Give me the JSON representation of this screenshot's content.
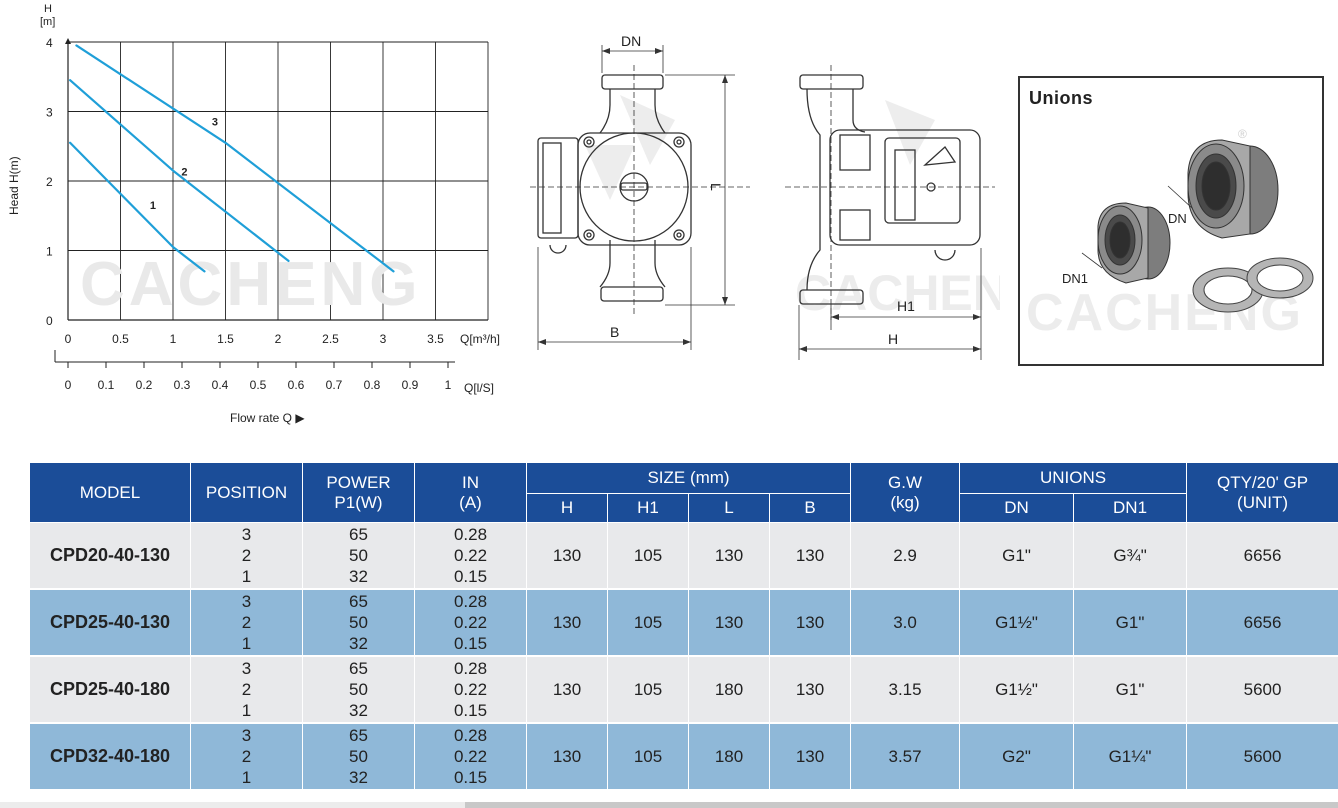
{
  "chart_data": {
    "type": "line",
    "ylabel_top": "H",
    "yunit": "[m]",
    "ylabel": "Head H(m)",
    "xunit_q": "Q[m³/h]",
    "xunit_l": "Q[l/S]",
    "xlabel": "Flow rate Q ▶",
    "yticks": [
      "0",
      "1",
      "2",
      "3",
      "4"
    ],
    "xticks_m3h": [
      "0",
      "0.5",
      "1",
      "1.5",
      "2",
      "2.5",
      "3",
      "3.5"
    ],
    "xticks_ls": [
      "0",
      "0.1",
      "0.2",
      "0.3",
      "0.4",
      "0.5",
      "0.6",
      "0.7",
      "0.8",
      "0.9",
      "1"
    ],
    "xlim": [
      0,
      4
    ],
    "ylim": [
      0,
      4
    ],
    "series": [
      {
        "name": "1",
        "x": [
          0.02,
          1.0,
          1.3
        ],
        "y": [
          2.55,
          1.05,
          0.7
        ]
      },
      {
        "name": "2",
        "x": [
          0.02,
          1.0,
          2.1
        ],
        "y": [
          3.45,
          2.15,
          0.85
        ]
      },
      {
        "name": "3",
        "x": [
          0.08,
          1.5,
          3.1
        ],
        "y": [
          3.95,
          2.55,
          0.7
        ]
      }
    ],
    "watermark": "CACHENG"
  },
  "diagram": {
    "front_labels": {
      "dn": "DN",
      "l": "L",
      "b": "B"
    },
    "side_labels": {
      "h1": "H1",
      "h": "H"
    },
    "watermark": "CACHENG",
    "registered": "®"
  },
  "unions": {
    "title": "Unions",
    "dn": "DN",
    "dn1": "DN1",
    "watermark": "CACHENG",
    "registered": "®"
  },
  "table": {
    "headers": {
      "model": "MODEL",
      "position": "POSITION",
      "power_line1": "POWER",
      "power_line2": "P1(W)",
      "in_line1": "IN",
      "in_line2": "(A)",
      "size": "SIZE (mm)",
      "size_h": "H",
      "size_h1": "H1",
      "size_l": "L",
      "size_b": "B",
      "gw_line1": "G.W",
      "gw_line2": "(kg)",
      "unions": "UNIONS",
      "unions_dn": "DN",
      "unions_dn1": "DN1",
      "qty_line1": "QTY/20' GP",
      "qty_line2": "(UNIT)"
    },
    "rows": [
      {
        "model": "CPD20-40-130",
        "positions": [
          "3",
          "2",
          "1"
        ],
        "power": [
          "65",
          "50",
          "32"
        ],
        "current": [
          "0.28",
          "0.22",
          "0.15"
        ],
        "h": "130",
        "h1": "105",
        "l": "130",
        "b": "130",
        "gw": "2.9",
        "dn": "G1\"",
        "dn1": "G¾\"",
        "qty": "6656"
      },
      {
        "model": "CPD25-40-130",
        "positions": [
          "3",
          "2",
          "1"
        ],
        "power": [
          "65",
          "50",
          "32"
        ],
        "current": [
          "0.28",
          "0.22",
          "0.15"
        ],
        "h": "130",
        "h1": "105",
        "l": "130",
        "b": "130",
        "gw": "3.0",
        "dn": "G1½\"",
        "dn1": "G1\"",
        "qty": "6656"
      },
      {
        "model": "CPD25-40-180",
        "positions": [
          "3",
          "2",
          "1"
        ],
        "power": [
          "65",
          "50",
          "32"
        ],
        "current": [
          "0.28",
          "0.22",
          "0.15"
        ],
        "h": "130",
        "h1": "105",
        "l": "180",
        "b": "130",
        "gw": "3.15",
        "dn": "G1½\"",
        "dn1": "G1\"",
        "qty": "5600"
      },
      {
        "model": "CPD32-40-180",
        "positions": [
          "3",
          "2",
          "1"
        ],
        "power": [
          "65",
          "50",
          "32"
        ],
        "current": [
          "0.28",
          "0.22",
          "0.15"
        ],
        "h": "130",
        "h1": "105",
        "l": "180",
        "b": "130",
        "gw": "3.57",
        "dn": "G2\"",
        "dn1": "G1¼\"",
        "qty": "5600"
      }
    ]
  },
  "colors": {
    "header_blue": "#1b4d98",
    "row_blue": "#8fb8d8",
    "row_gray": "#e8e9eb",
    "curve": "#1f9fd8"
  }
}
